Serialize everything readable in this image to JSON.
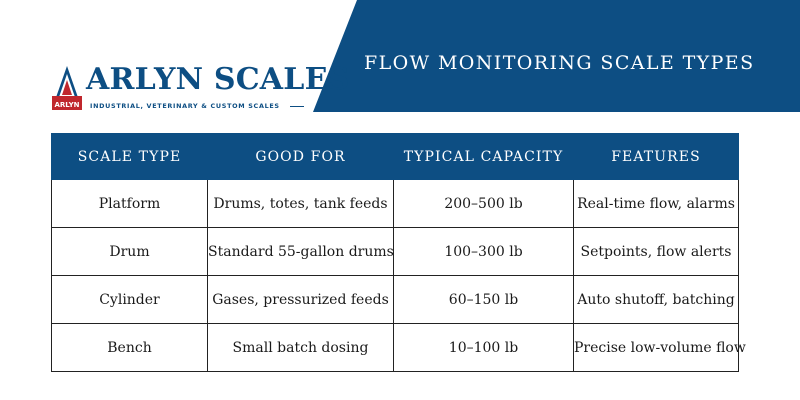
{
  "brand": {
    "logo_badge": "ARLYN",
    "name": "ARLYN SCALES",
    "tagline": "INDUSTRIAL, VETERINARY & CUSTOM SCALES",
    "primary_color": "#0d4e83",
    "accent_color": "#c0272d"
  },
  "banner": {
    "title": "FLOW MONITORING SCALE TYPES"
  },
  "table": {
    "headers": [
      "SCALE TYPE",
      "GOOD FOR",
      "TYPICAL CAPACITY",
      "FEATURES"
    ],
    "rows": [
      [
        "Platform",
        "Drums, totes, tank feeds",
        "200–500 lb",
        "Real-time flow, alarms"
      ],
      [
        "Drum",
        "Standard 55-gallon drums",
        "100–300 lb",
        "Setpoints, flow alerts"
      ],
      [
        "Cylinder",
        "Gases, pressurized feeds",
        "60–150 lb",
        "Auto shutoff, batching"
      ],
      [
        "Bench",
        "Small batch dosing",
        "10–100 lb",
        "Precise low-volume flow"
      ]
    ]
  }
}
